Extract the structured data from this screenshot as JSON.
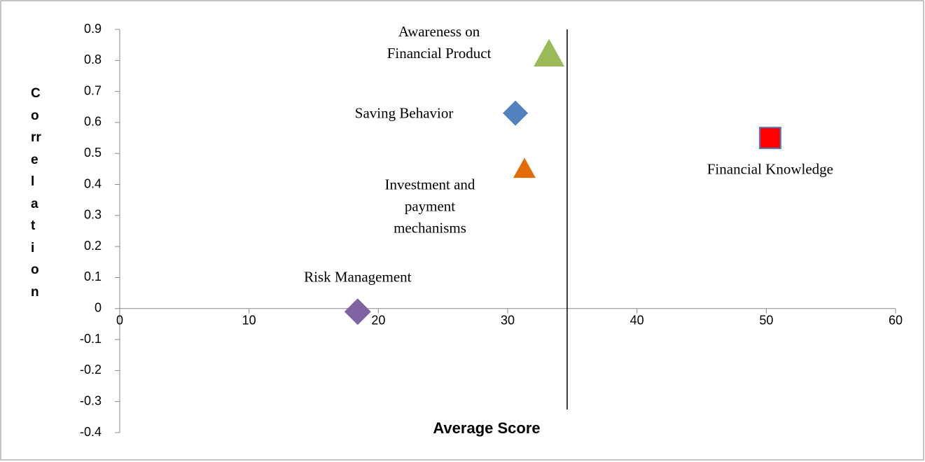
{
  "chart_data": {
    "type": "scatter",
    "xlabel": "Average Score",
    "ylabel": "C\no\nrr\ne\nl\na\nt\ni\no\nn",
    "xlim": [
      0,
      60
    ],
    "xticks": [
      0,
      10,
      20,
      30,
      40,
      50,
      60
    ],
    "ylim": [
      -0.4,
      0.9
    ],
    "yticks": [
      -0.4,
      -0.3,
      -0.2,
      -0.1,
      0,
      0.1,
      0.2,
      0.3,
      0.4,
      0.5,
      0.6,
      0.7,
      0.8,
      0.9
    ],
    "vline_x": 34.6,
    "series": [
      {
        "name": "Awareness on\nFinancial Product",
        "color": "#9bbb59",
        "marker": "triangle",
        "x": [
          33.2
        ],
        "values": [
          0.82
        ]
      },
      {
        "name": "Saving Behavior",
        "color": "#4f81bd",
        "marker": "diamond",
        "x": [
          30.6
        ],
        "values": [
          0.63
        ]
      },
      {
        "name": "Investment and\npayment\nmechanisms",
        "color": "#e36c09",
        "marker": "triangle",
        "x": [
          31.3
        ],
        "values": [
          0.45
        ]
      },
      {
        "name": "Financial Knowledge",
        "color": "#ff0000",
        "marker": "square",
        "x": [
          50.3
        ],
        "values": [
          0.55
        ]
      },
      {
        "name": "Risk Management",
        "color": "#8064a2",
        "marker": "diamond",
        "x": [
          18.4
        ],
        "values": [
          -0.01
        ]
      }
    ]
  }
}
